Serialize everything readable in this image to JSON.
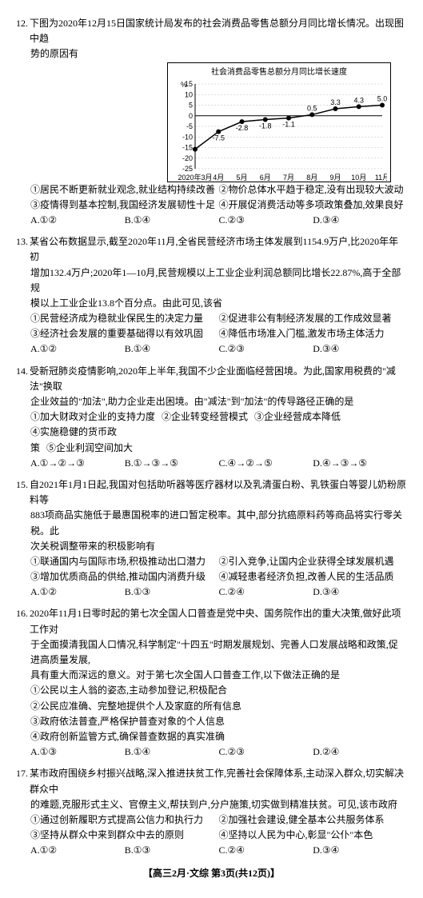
{
  "q12": {
    "num": "12.",
    "text_line1": "下图为2020年12月15日国家统计局发布的社会消费品零售总额分月同比增长情况。出现图中趋",
    "text_line2": "势的原因有",
    "chart": {
      "title": "社会消费品零售总额分月同比增长速度",
      "type": "line",
      "ylabel": "%",
      "ylim": [
        -25,
        15
      ],
      "ytick_step": 5,
      "yticks": [
        -25,
        -20,
        -15,
        -10,
        -5,
        0,
        5,
        10,
        15
      ],
      "categories": [
        "2020年3月",
        "4月",
        "5月",
        "6月",
        "7月",
        "8月",
        "9月",
        "10月",
        "11月"
      ],
      "values": [
        -15.8,
        -7.5,
        -2.8,
        -1.8,
        -1.1,
        0.5,
        3.3,
        4.3,
        5.0
      ],
      "point_labels": [
        "",
        "-7.5",
        "-2.8",
        "-1.8",
        "-1.1",
        "0.5",
        "3.3",
        "4.3",
        "5.0"
      ],
      "line_color": "#000000",
      "marker_color": "#000000",
      "grid_color": "#bbbbbb",
      "background": "#ffffff",
      "marker_size": 3,
      "line_width": 1.5
    },
    "opts": {
      "o1": "①居民不断更新就业观念,就业结构持续改善",
      "o2": "②物价总体水平趋于稳定,没有出现较大波动",
      "o3": "③疫情得到基本控制,我国经济发展韧性十足",
      "o4": "④开展促消费活动等多项政策叠加,效果良好"
    },
    "ans": {
      "a": "A.①②",
      "b": "B.①④",
      "c": "C.②③",
      "d": "D.③④"
    }
  },
  "q13": {
    "num": "13.",
    "text_line1": "某省公布数据显示,截至2020年11月,全省民营经济市场主体发展到1154.9万户,比2020年年初",
    "text_line2": "增加132.4万户;2020年1—10月,民营规模以上工业企业利润总额同比增长22.87%,高于全部规",
    "text_line3": "模以上工业企业13.8个百分点。由此可见,该省",
    "opts": {
      "o1": "①民营经济成为稳就业保民生的决定力量",
      "o2": "②促进非公有制经济发展的工作成效显著",
      "o3": "③经济社会发展的重要基础得以有效巩固",
      "o4": "④降低市场准入门槛,激发市场主体活力"
    },
    "ans": {
      "a": "A.①②",
      "b": "B.①④",
      "c": "C.②③",
      "d": "D.③④"
    }
  },
  "q14": {
    "num": "14.",
    "text_line1": "受新冠肺炎疫情影响,2020年上半年,我国不少企业面临经营困境。为此,国家用税费的\"减法\"换取",
    "text_line2": "企业效益的\"加法\",助力企业走出困境。由\"减法\"到\"加法\"的传导路径正确的是",
    "sub": {
      "s1": "①加大财政对企业的支持力度",
      "s2": "②企业转变经营模式",
      "s3": "③企业经营成本降低",
      "s4": "④实施稳健的货币政",
      "s5": "策",
      "s6": "⑤企业利润空间加大"
    },
    "ans": {
      "a": "A.①→②→③",
      "b": "B.①→③→⑤",
      "c": "C.④→②→⑤",
      "d": "D.④→③→⑤"
    }
  },
  "q15": {
    "num": "15.",
    "text_line1": "自2021年1月1日起,我国对包括助听器等医疗器材以及乳清蛋白粉、乳铁蛋白等婴儿奶粉原料等",
    "text_line2": "883项商品实施低于最惠国税率的进口暂定税率。其中,部分抗癌原料药等商品将实行零关税。此",
    "text_line3": "次关税调整带来的积极影响有",
    "opts": {
      "o1": "①联通国内与国际市场,积极推动出口潜力",
      "o2": "②引入竞争,让国内企业获得全球发展机遇",
      "o3": "③增加优质商品的供给,推动国内消费升级",
      "o4": "④减轻患者经济负担,改善人民的生活品质"
    },
    "ans": {
      "a": "A.①②",
      "b": "B.①③",
      "c": "C.②④",
      "d": "D.③④"
    }
  },
  "q16": {
    "num": "16.",
    "text_line1": "2020年11月1日零时起的第七次全国人口普查是党中央、国务院作出的重大决策,做好此项工作对",
    "text_line2": "于全面摸清我国人口情况,科学制定\"十四五\"时期发展规划、完善人口发展战略和政策,促进高质量发展,",
    "text_line3": "具有重大而深远的意义。对于第七次全国人口普查工作,以下做法正确的是",
    "opts": {
      "o1": "①公民以主人翁的姿态,主动参加登记,积极配合",
      "o2": "②公民应准确、完整地提供个人及家庭的所有信息",
      "o3": "③政府依法普查,严格保护普查对象的个人信息",
      "o4": "④政府创新监管方式,确保普查数据的真实准确"
    },
    "ans": {
      "a": "A.①③",
      "b": "B.①④",
      "c": "C.②③",
      "d": "D.②④"
    }
  },
  "q17": {
    "num": "17.",
    "text_line1": "某市政府围绕乡村振兴战略,深入推进扶贫工作,完善社会保障体系,主动深入群众,切实解决群众中",
    "text_line2": "的难题,克服形式主义、官僚主义,帮扶到户,分户施策,切实做到精准扶贫。可见,该市政府",
    "opts": {
      "o1": "①通过创新履职方式提高公信力和执行力",
      "o2": "②加强社会建设,健全基本公共服务体系",
      "o3": "③坚持从群众中来到群众中去的原则",
      "o4": "④坚持以人民为中心,彰显\"公仆\"本色"
    },
    "ans": {
      "a": "A.①②",
      "b": "B.①③",
      "c": "C.②④",
      "d": "D.③④"
    }
  },
  "footer": "【高三2月·文综 第3页(共12页)】"
}
